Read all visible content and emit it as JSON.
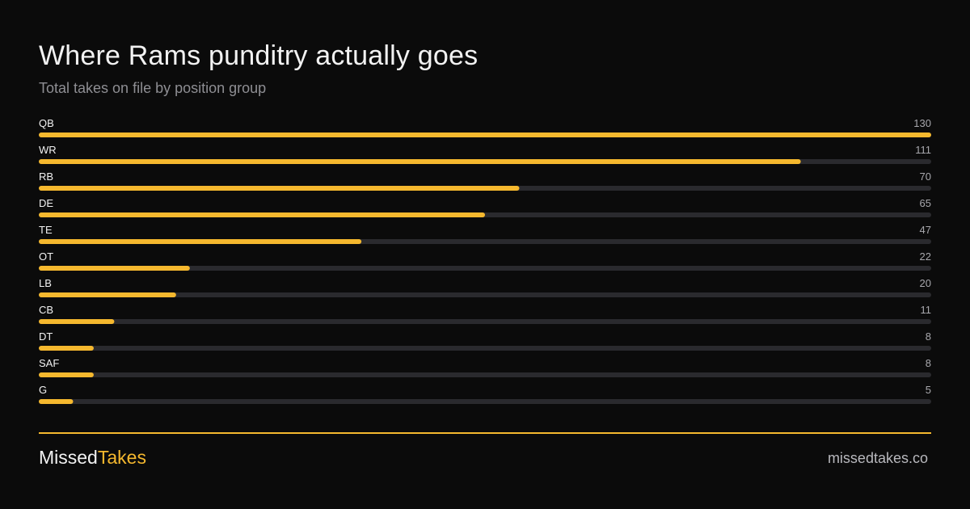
{
  "header": {
    "title": "Where Rams punditry actually goes",
    "subtitle": "Total takes on file by position group"
  },
  "chart_data": {
    "type": "bar",
    "orientation": "horizontal",
    "categories": [
      "QB",
      "WR",
      "RB",
      "DE",
      "TE",
      "OT",
      "LB",
      "CB",
      "DT",
      "SAF",
      "G"
    ],
    "values": [
      130,
      111,
      70,
      65,
      47,
      22,
      20,
      11,
      8,
      8,
      5
    ],
    "xlim": [
      0,
      130
    ],
    "title": "Where Rams punditry actually goes",
    "subtitle": "Total takes on file by position group",
    "grid": false,
    "legend": "none",
    "colors": {
      "bar": "#f5b82e",
      "track": "#2a2a2e",
      "label": "#f2f2f2",
      "value": "#a8a8ad"
    }
  },
  "footer": {
    "brand_part1": "Missed",
    "brand_part2": "Takes",
    "site": "missedtakes.co"
  },
  "colors": {
    "background": "#0b0b0b",
    "accent": "#f5b82e"
  }
}
